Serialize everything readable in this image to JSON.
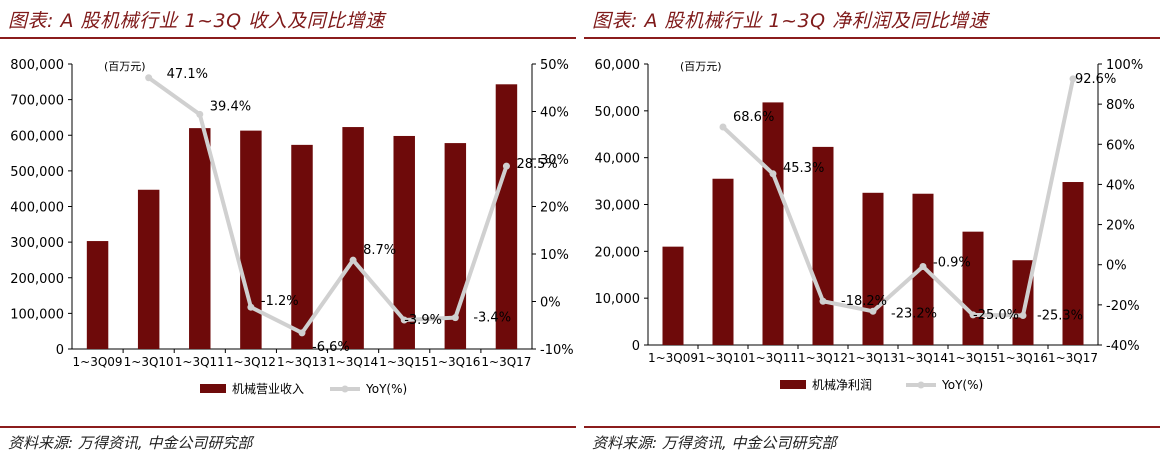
{
  "panels": [
    {
      "title": "图表: A 股机械行业 1~3Q 收入及同比增速",
      "source": "资料来源: 万得资讯, 中金公司研究部",
      "chart_data": {
        "type": "bar",
        "combo": "bar + line (secondary axis)",
        "categories": [
          "1~3Q09",
          "1~3Q10",
          "1~3Q11",
          "1~3Q12",
          "1~3Q13",
          "1~3Q14",
          "1~3Q15",
          "1~3Q16",
          "1~3Q17"
        ],
        "unit_label": "(百万元)",
        "y_left": {
          "min": 0,
          "max": 800000,
          "ticks": [
            "0",
            "100,000",
            "200,000",
            "300,000",
            "400,000",
            "500,000",
            "600,000",
            "700,000",
            "800,000"
          ]
        },
        "y_right": {
          "min": -10,
          "max": 50,
          "ticks": [
            "-10%",
            "0%",
            "10%",
            "20%",
            "30%",
            "40%",
            "50%"
          ]
        },
        "series": [
          {
            "name": "机械营业收入",
            "kind": "bar",
            "axis": "left",
            "values": [
              303000,
              447000,
              620000,
              613000,
              573000,
              623000,
              598000,
              578000,
              743000
            ]
          },
          {
            "name": "YoY(%)",
            "kind": "line",
            "axis": "right",
            "values": [
              null,
              47.1,
              39.4,
              -1.2,
              -6.6,
              8.7,
              -3.9,
              -3.4,
              28.5
            ],
            "labels": [
              "",
              "47.1%",
              "39.4%",
              "-1.2%",
              "-6.6%",
              "8.7%",
              "-3.9%",
              "-3.4%",
              "28.5%"
            ]
          }
        ],
        "colors": {
          "bar": "#6e0a0a",
          "line": "#d0d0d0"
        },
        "legend": "bottom"
      }
    },
    {
      "title": "图表: A 股机械行业 1~3Q 净利润及同比增速",
      "source": "资料来源: 万得资讯, 中金公司研究部",
      "chart_data": {
        "type": "bar",
        "combo": "bar + line (secondary axis)",
        "categories": [
          "1~3Q09",
          "1~3Q10",
          "1~3Q11",
          "1~3Q12",
          "1~3Q13",
          "1~3Q14",
          "1~3Q15",
          "1~3Q16",
          "1~3Q17"
        ],
        "unit_label": "(百万元)",
        "y_left": {
          "min": 0,
          "max": 60000,
          "ticks": [
            "0",
            "10,000",
            "20,000",
            "30,000",
            "40,000",
            "50,000",
            "60,000"
          ]
        },
        "y_right": {
          "min": -40,
          "max": 100,
          "ticks": [
            "-40%",
            "-20%",
            "0%",
            "20%",
            "40%",
            "60%",
            "80%",
            "100%"
          ]
        },
        "series": [
          {
            "name": "机械净利润",
            "kind": "bar",
            "axis": "left",
            "values": [
              21000,
              35500,
              51800,
              42300,
              32500,
              32300,
              24200,
              18100,
              34800
            ]
          },
          {
            "name": "YoY(%)",
            "kind": "line",
            "axis": "right",
            "values": [
              null,
              68.6,
              45.3,
              -18.2,
              -23.2,
              -0.9,
              -25.0,
              -25.3,
              92.6
            ],
            "labels": [
              "",
              "68.6%",
              "45.3%",
              "-18.2%",
              "-23.2%",
              "-0.9%",
              "-25.0%",
              "-25.3%",
              "92.6%"
            ]
          }
        ],
        "colors": {
          "bar": "#6e0a0a",
          "line": "#d0d0d0"
        },
        "legend": "bottom"
      }
    }
  ]
}
